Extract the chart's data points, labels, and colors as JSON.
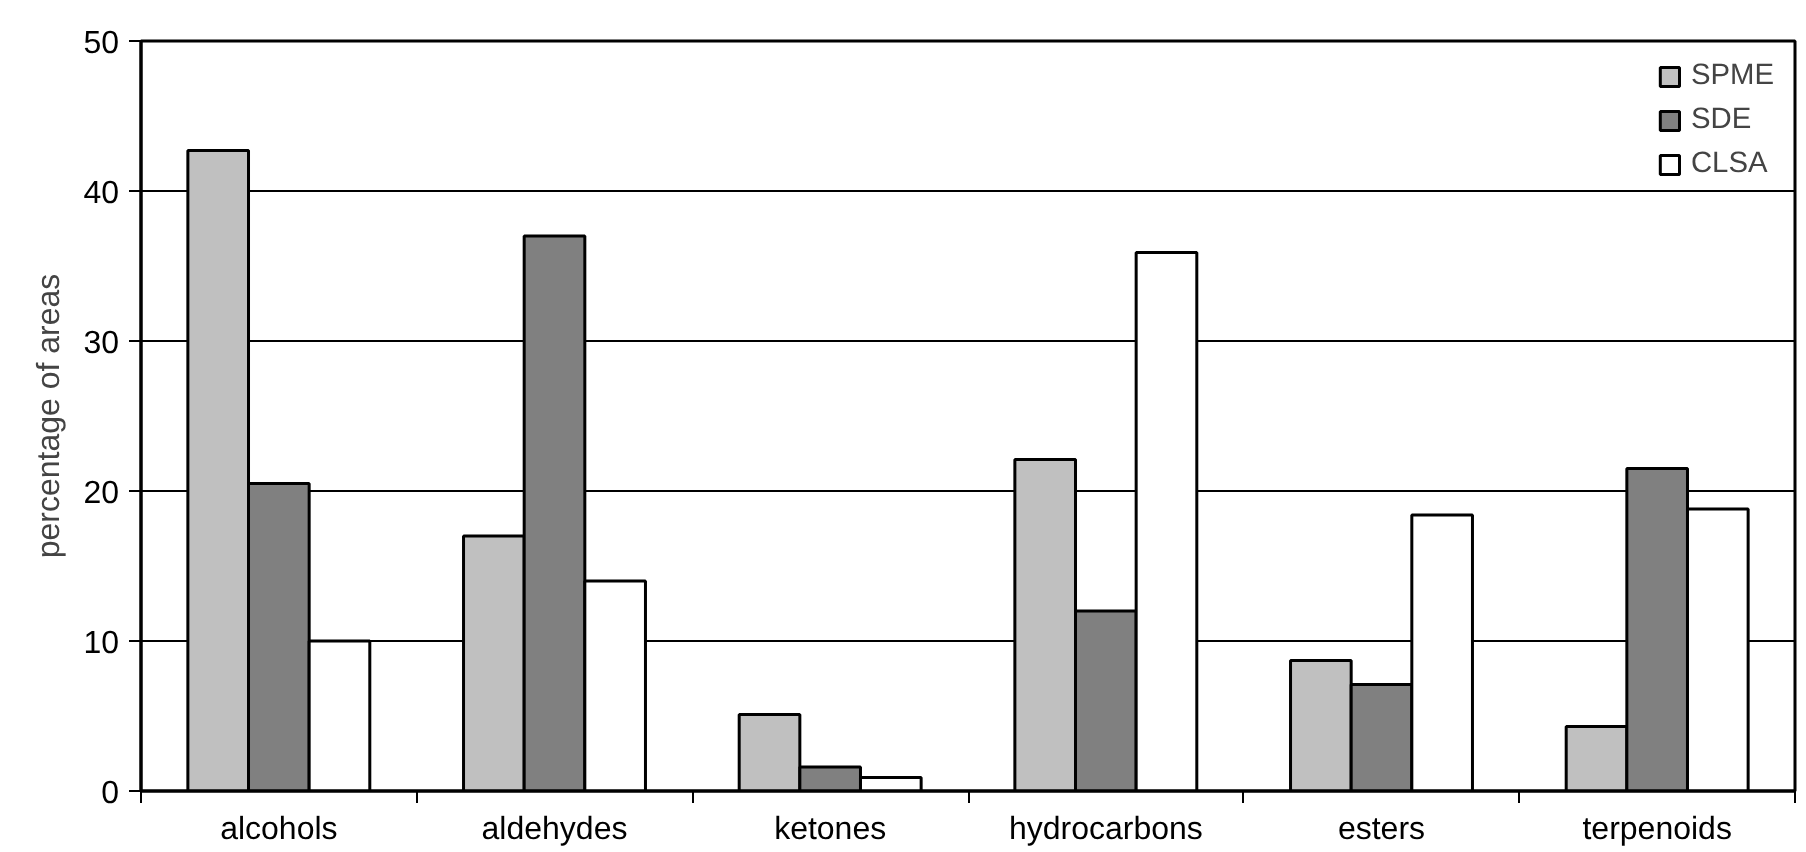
{
  "chart_data": {
    "type": "bar",
    "ylabel": "percentage of areas",
    "categories": [
      "alcohols",
      "aldehydes",
      "ketones",
      "hydrocarbons",
      "esters",
      "terpenoids"
    ],
    "series": [
      {
        "name": "SPME",
        "color": "#c0c0c0",
        "values": [
          42.7,
          17.0,
          5.1,
          22.1,
          8.7,
          4.3
        ]
      },
      {
        "name": "SDE",
        "color": "#808080",
        "values": [
          20.5,
          37.0,
          1.6,
          12.0,
          7.1,
          21.5
        ]
      },
      {
        "name": "CLSA",
        "color": "#ffffff",
        "values": [
          10.0,
          14.0,
          0.9,
          35.9,
          18.4,
          18.8
        ]
      }
    ],
    "ylim": [
      0,
      50
    ],
    "yticks": [
      0,
      10,
      20,
      30,
      40,
      50
    ],
    "grid": "y",
    "legend": "top right"
  }
}
